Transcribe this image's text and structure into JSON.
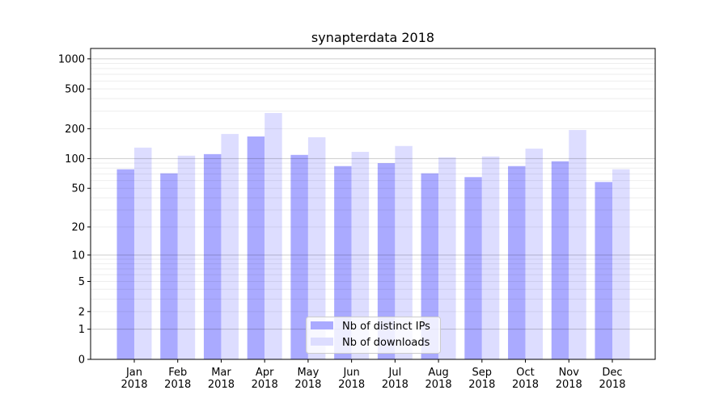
{
  "chart_data": {
    "type": "bar",
    "title": "synapterdata 2018",
    "xlabel": "",
    "ylabel": "",
    "yscale": "log(1+y)",
    "ylim": [
      0,
      1270
    ],
    "yticks": [
      0,
      1,
      2,
      5,
      10,
      20,
      50,
      100,
      200,
      500,
      1000
    ],
    "grid": true,
    "legend_position": "lower center",
    "categories": [
      "Jan\n2018",
      "Feb\n2018",
      "Mar\n2018",
      "Apr\n2018",
      "May\n2018",
      "Jun\n2018",
      "Jul\n2018",
      "Aug\n2018",
      "Sep\n2018",
      "Oct\n2018",
      "Nov\n2018",
      "Dec\n2018"
    ],
    "series": [
      {
        "name": "Nb of distinct IPs",
        "color": "#aaaaff",
        "values": [
          78,
          71,
          111,
          167,
          109,
          84,
          90,
          71,
          65,
          84,
          94,
          58
        ]
      },
      {
        "name": "Nb of downloads",
        "color": "#ddddff",
        "values": [
          129,
          107,
          177,
          287,
          164,
          117,
          134,
          103,
          105,
          126,
          194,
          78
        ]
      }
    ]
  }
}
